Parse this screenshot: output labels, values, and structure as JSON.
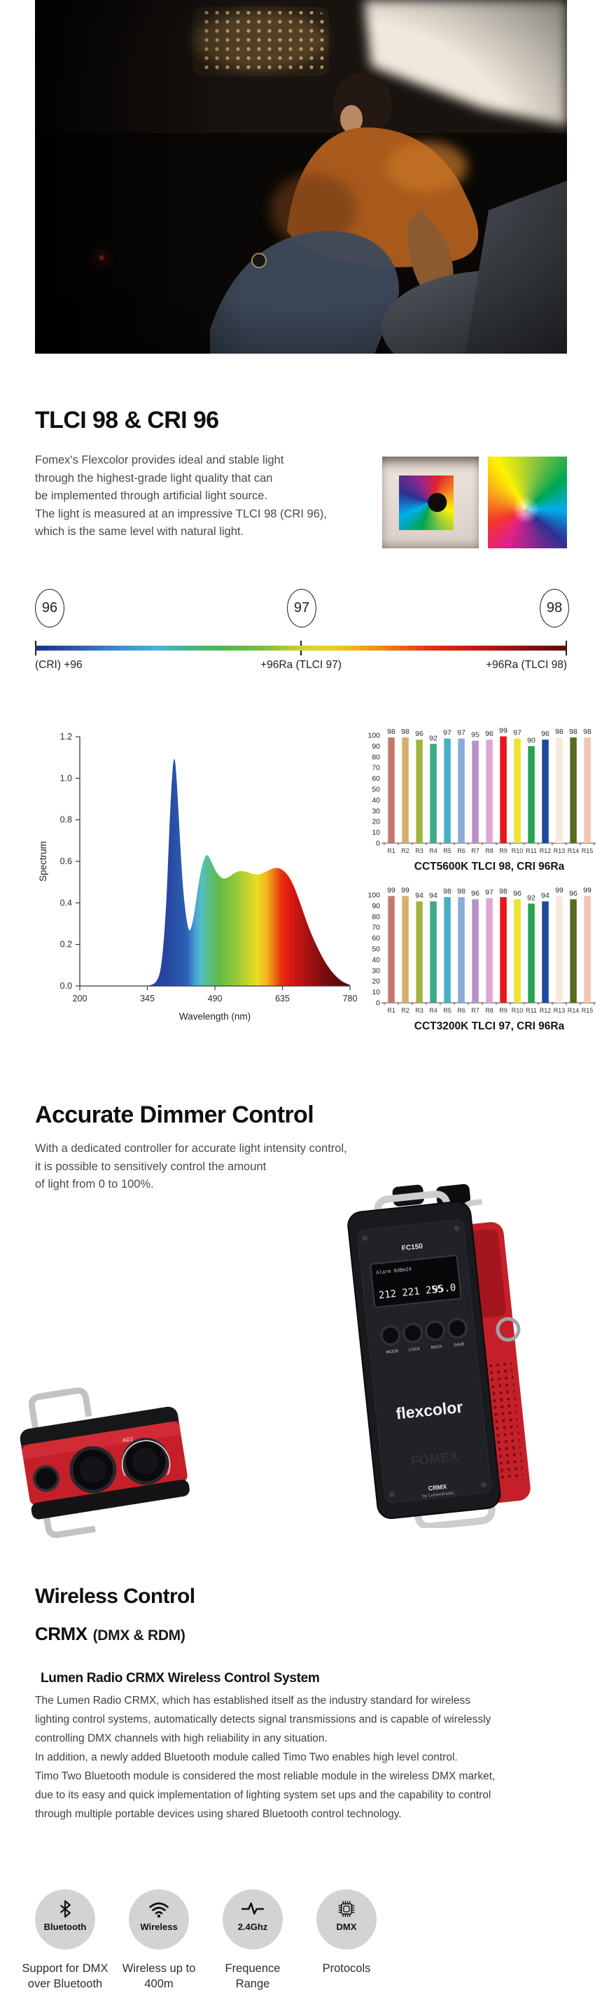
{
  "colors": {
    "accent_red": "#d42028",
    "heading": "#0f0f0f",
    "body_text": "#4a4a4a",
    "feature_circle_gray": "#d3d3d3"
  },
  "tlci": {
    "title": "TLCI 98 & CRI 96",
    "body": "Fomex's Flexcolor provides ideal and stable light\nthrough the highest-grade light quality that can\nbe implemented through artificial light source.\nThe light is measured at an impressive TLCI 98 (CRI 96),\nwhich is the same level with natural light."
  },
  "gauge": {
    "markers": [
      {
        "value": "96",
        "label": "(CRI) +96"
      },
      {
        "value": "97",
        "label": "+96Ra (TLCI 97)"
      },
      {
        "value": "98",
        "label": "+96Ra (TLCI 98)"
      }
    ]
  },
  "chart_data": [
    {
      "type": "area",
      "title": "",
      "xlabel": "Wavelength (nm)",
      "ylabel": "Spectrum",
      "xlim": [
        200,
        780
      ],
      "ylim": [
        0,
        1.2
      ],
      "xticks": [
        200,
        345,
        490,
        635,
        780
      ],
      "yticks": [
        0.0,
        0.2,
        0.4,
        0.6,
        0.8,
        1.0,
        1.2
      ],
      "grid": false,
      "points": [
        [
          345,
          0
        ],
        [
          355,
          0.005
        ],
        [
          365,
          0.02
        ],
        [
          375,
          0.08
        ],
        [
          385,
          0.35
        ],
        [
          392,
          0.75
        ],
        [
          398,
          1.02
        ],
        [
          403,
          1.12
        ],
        [
          408,
          1.0
        ],
        [
          415,
          0.7
        ],
        [
          422,
          0.45
        ],
        [
          430,
          0.3
        ],
        [
          436,
          0.255
        ],
        [
          444,
          0.32
        ],
        [
          452,
          0.45
        ],
        [
          460,
          0.56
        ],
        [
          468,
          0.62
        ],
        [
          474,
          0.635
        ],
        [
          482,
          0.6
        ],
        [
          492,
          0.55
        ],
        [
          505,
          0.515
        ],
        [
          518,
          0.52
        ],
        [
          532,
          0.545
        ],
        [
          545,
          0.555
        ],
        [
          558,
          0.55
        ],
        [
          570,
          0.54
        ],
        [
          582,
          0.535
        ],
        [
          595,
          0.545
        ],
        [
          608,
          0.56
        ],
        [
          620,
          0.57
        ],
        [
          632,
          0.565
        ],
        [
          645,
          0.54
        ],
        [
          658,
          0.49
        ],
        [
          670,
          0.42
        ],
        [
          682,
          0.34
        ],
        [
          695,
          0.26
        ],
        [
          710,
          0.185
        ],
        [
          725,
          0.12
        ],
        [
          740,
          0.07
        ],
        [
          755,
          0.035
        ],
        [
          768,
          0.015
        ],
        [
          780,
          0.005
        ]
      ],
      "gradient": [
        [
          385,
          "#26459f"
        ],
        [
          430,
          "#2d62b5"
        ],
        [
          450,
          "#4aa8d8"
        ],
        [
          462,
          "#54c0c0"
        ],
        [
          475,
          "#57bd8a"
        ],
        [
          500,
          "#63bb45"
        ],
        [
          530,
          "#8cc63c"
        ],
        [
          560,
          "#c4d32c"
        ],
        [
          580,
          "#eadc23"
        ],
        [
          600,
          "#f2b61b"
        ],
        [
          615,
          "#ee7d13"
        ],
        [
          630,
          "#e93a10"
        ],
        [
          650,
          "#e01911"
        ],
        [
          680,
          "#b31313"
        ],
        [
          720,
          "#7e0e0e"
        ],
        [
          780,
          "#4a0808"
        ]
      ]
    },
    {
      "type": "bar",
      "title": "CCT5600K TLCI 98, CRI 96Ra",
      "categories": [
        "R1",
        "R2",
        "R3",
        "R4",
        "R5",
        "R6",
        "R7",
        "R8",
        "R9",
        "R10",
        "R11",
        "R12",
        "R13",
        "R14",
        "R15"
      ],
      "values": [
        98,
        98,
        96,
        92,
        97,
        97,
        95,
        96,
        99,
        97,
        90,
        96,
        98,
        98,
        98
      ],
      "colors": [
        "#c5796d",
        "#d4af6e",
        "#9fb440",
        "#3cab85",
        "#46b0c8",
        "#8babd8",
        "#bb8fc9",
        "#dca7d4",
        "#e8161d",
        "#ece42f",
        "#26a454",
        "#1d4a9e",
        "#f8e8dc",
        "#586b22",
        "#f0c5b4"
      ],
      "ylim": [
        0,
        100
      ],
      "yticks": [
        0,
        10,
        20,
        30,
        40,
        50,
        60,
        70,
        80,
        90,
        100
      ],
      "grid": false
    },
    {
      "type": "bar",
      "title": "CCT3200K TLCI 97, CRI 96Ra",
      "categories": [
        "R1",
        "R2",
        "R3",
        "R4",
        "R5",
        "R6",
        "R7",
        "R8",
        "R9",
        "R10",
        "R11",
        "R12",
        "R13",
        "R14",
        "R15"
      ],
      "values": [
        99,
        99,
        94,
        94,
        98,
        98,
        96,
        97,
        98,
        96,
        92,
        94,
        99,
        96,
        99
      ],
      "colors": [
        "#c5796d",
        "#d4af6e",
        "#9fb440",
        "#3cab85",
        "#46b0c8",
        "#8babd8",
        "#bb8fc9",
        "#dca7d4",
        "#e8161d",
        "#ece42f",
        "#26a454",
        "#1d4a9e",
        "#f8e8dc",
        "#586b22",
        "#f0c5b4"
      ],
      "ylim": [
        0,
        100
      ],
      "yticks": [
        0,
        10,
        20,
        30,
        40,
        50,
        60,
        70,
        80,
        90,
        100
      ],
      "grid": false
    }
  ],
  "dimmer": {
    "title": "Accurate Dimmer Control",
    "body": "With a dedicated controller for accurate light intensity control,\nit is possible to sensitively control the amount\nof light from 0 to 100%.",
    "controller": {
      "model": "FC150",
      "screen_status": "Alarm  0dBm24",
      "screen_values": "212 221 255",
      "screen_dim": "95.0",
      "buttons": [
        "MODE",
        "LOCK",
        "BACK",
        "SAVE"
      ],
      "brand": "flexcolor",
      "logo": "FOMEX",
      "crmx": "CRMX",
      "crmx_sub": "by LumenRadio",
      "knob_label": "ADJ"
    }
  },
  "wireless": {
    "title": "Wireless Control",
    "subtitle_main": "CRMX",
    "subtitle_paren": "(DMX & RDM)",
    "system_title": "Lumen Radio CRMX Wireless Control System",
    "body": "The Lumen Radio CRMX, which has established itself as the industry standard for wireless\nlighting control systems, automatically detects signal transmissions and is capable of wirelessly\ncontrolling DMX channels with high reliability in any situation.\nIn addition, a newly added Bluetooth module called Timo Two enables high level control.\nTimo Two Bluetooth module is considered the most reliable module in the wireless DMX market,\ndue to its easy and quick implementation of lighting system set ups and the capability to control\nthrough multiple portable devices using shared Bluetooth control technology.",
    "features": [
      {
        "icon": "bluetooth-icon",
        "label": "Bluetooth",
        "caption": "Support for DMX\nover Bluetooth"
      },
      {
        "icon": "wifi-icon",
        "label": "Wireless",
        "caption": "Wireless up to\n400m"
      },
      {
        "icon": "frequency-icon",
        "label": "2.4Ghz",
        "caption": "Frequence\nRange"
      },
      {
        "icon": "chip-icon",
        "label": "DMX",
        "caption": "Protocols"
      }
    ]
  }
}
